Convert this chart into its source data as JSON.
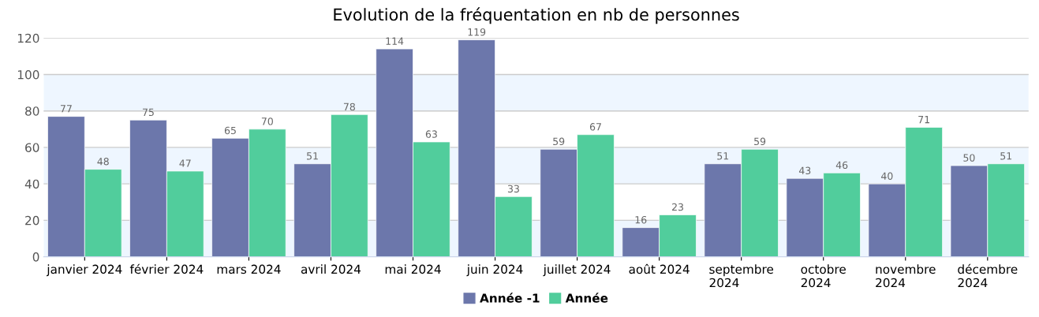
{
  "chart_data": {
    "type": "bar",
    "title": "Evolution de la fréquentation en nb de personnes",
    "categories": [
      "janvier 2024",
      "février 2024",
      "mars 2024",
      "avril 2024",
      "mai 2024",
      "juin 2024",
      "juillet 2024",
      "août 2024",
      "septembre\n2024",
      "octobre\n2024",
      "novembre\n2024",
      "décembre\n2024"
    ],
    "series": [
      {
        "name": "Année -1",
        "color": "#6c77ab",
        "values": [
          77,
          75,
          65,
          51,
          114,
          119,
          59,
          16,
          51,
          43,
          40,
          50
        ]
      },
      {
        "name": "Année",
        "color": "#51cd9c",
        "values": [
          48,
          47,
          70,
          78,
          63,
          33,
          67,
          23,
          59,
          46,
          71,
          51
        ]
      }
    ],
    "ylim": [
      0,
      120
    ],
    "yticks": [
      0,
      20,
      40,
      60,
      80,
      100,
      120
    ],
    "grid": "y",
    "legend": "bottom",
    "data_labels": true,
    "bands": [
      {
        "axis": "y",
        "from": 0,
        "to": 20,
        "color": "#eef6ff"
      },
      {
        "axis": "y",
        "from": 40,
        "to": 60,
        "color": "#eef6ff"
      },
      {
        "axis": "y",
        "from": 80,
        "to": 100,
        "color": "#eef6ff"
      }
    ]
  }
}
